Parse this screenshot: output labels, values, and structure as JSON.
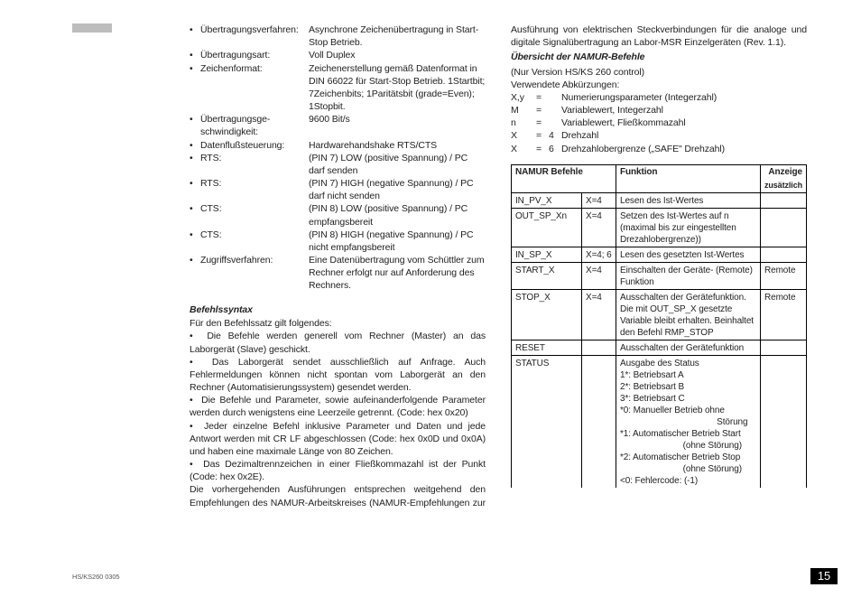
{
  "left": {
    "rows": [
      {
        "term": "Übertragungsverfahren:",
        "def": "Asynchrone Zeichenübertragung in Start-Stop Betrieb."
      },
      {
        "term": "Übertragungsart:",
        "def": "Voll Duplex"
      },
      {
        "term": "Zeichenformat:",
        "def": "Zeichenerstellung gemäß Datenformat in DIN 66022 für Start-Stop Betrieb. 1Startbit; 7Zeichen­bits; 1Paritätsbit (grade=Even); 1Stopbit."
      },
      {
        "term": "Übertragungsge­schwindigkeit:",
        "def": "9600 Bit/s"
      },
      {
        "term": "Datenflußsteuerung:",
        "def": "Hardwarehandshake RTS/CTS"
      },
      {
        "term": "RTS:",
        "def": "(PIN 7) LOW (positive Spannung) / PC darf senden"
      },
      {
        "term": "RTS:",
        "def": "(PIN 7) HIGH (negative Spannung) / PC darf nicht senden"
      },
      {
        "term": "CTS:",
        "def": "(PIN 8) LOW (positive Spannung) / PC empfangsbereit"
      },
      {
        "term": "CTS:",
        "def": "(PIN 8) HIGH (negative Spannung) / PC nicht empfangsbereit"
      },
      {
        "term": "Zugriffsverfahren:",
        "def": "Eine Datenübertragung vom Schüttler zum Rechner erfolgt nur auf Anforderung des Rechners."
      }
    ],
    "syntax_title": "Befehlssyntax",
    "syntax_intro": "Für den Befehlssatz gilt folgendes:",
    "syntax_items": [
      "Die Befehle werden generell vom Rechner (Master) an das Laborgerät (Slave) geschickt.",
      "Das Laborgerät sendet ausschließlich auf Anfrage. Auch Fehlermeldun­gen können nicht spontan vom Laborgerät an den Rechner (Automatisie­rungssystem) gesendet werden.",
      "Die Befehle und Parameter, sowie aufeinanderfolgende Parameter wer­den durch wenigstens eine Leerzeile getrennt. (Code: hex 0x20)",
      "Jeder einzelne Befehl inklusive Parameter und Daten und jede Antwort werden mit CR LF abgeschlossen (Code: hex 0x0D und 0x0A) und haben eine maximale Länge von 80 Zeichen.",
      "Das Dezimaltrennzeichen in einer Fließkommazahl ist der Punkt (Code: hex 0x2E)."
    ],
    "syntax_tail": "Die vorhergehenden Ausführungen entsprechen weitgehend den Empfehlungen des NAMUR-Arbeitskreises (NAMUR-Empfehlungen zur"
  },
  "right": {
    "intro": "Ausführung von elektrischen Steckverbindungen für die analoge und digita­le Signalübertragung an Labor-MSR Einzelgeräten (Rev. 1.1).",
    "ov_title": "Übersicht der NAMUR-Befehle",
    "ov_sub1": "(Nur Version HS/KS 260 control)",
    "ov_sub2": "Verwendete Abkürzungen:",
    "abbr": [
      {
        "k": "X,y",
        "e": "=",
        "v": "",
        "d": "Numerierungsparameter (Integerzahl)"
      },
      {
        "k": "M",
        "e": "=",
        "v": "",
        "d": "Variablewert, Integerzahl"
      },
      {
        "k": "n",
        "e": "=",
        "v": "",
        "d": "Variablewert, Fließkommazahl"
      },
      {
        "k": "X",
        "e": "=",
        "v": "4",
        "d": "Drehzahl"
      },
      {
        "k": "X",
        "e": "=",
        "v": "6",
        "d": "Drehzahlobergrenze („SAFE\" Drehzahl)"
      }
    ],
    "th": {
      "c1": "NAMUR Befehle",
      "c2": "Funktion",
      "c3": "Anzeige",
      "c3b": "zusätzlich"
    },
    "rows": [
      {
        "cmd": "IN_PV_X",
        "x": "X=4",
        "f": "Lesen des Ist-Wertes",
        "a": ""
      },
      {
        "cmd": "OUT_SP_Xn",
        "x": "X=4",
        "f": "Setzen des Ist-Wertes auf n (maximal bis zur eingestellten Drezahlobergrenze))",
        "a": ""
      },
      {
        "cmd": "IN_SP_X",
        "x": "X=4; 6",
        "f": "Lesen des gesetzten Ist-Wertes",
        "a": ""
      },
      {
        "cmd": "START_X",
        "x": "X=4",
        "f": "Einschalten der Geräte- (Remote) Funktion",
        "a": "Remote"
      },
      {
        "cmd": "STOP_X",
        "x": "X=4",
        "f": "Ausschalten der Gerätefunk­tion. Die mit OUT_SP_X ge­setzte Variable bleibt erhalten. Beinhaltet den Befehl RMP_STOP",
        "a": "Remote"
      },
      {
        "cmd": "RESET",
        "x": "",
        "f": "Ausschalten der Gerätefunktion",
        "a": ""
      }
    ],
    "status_cmd": "STATUS",
    "status_f": "Ausgabe des Status",
    "status_lines": [
      "1*: Betriebsart A",
      "2*: Betriebsart B",
      "3*: Betriebsart C",
      "*0: Manueller Betrieb ohne",
      "                                        Störung",
      "*1: Automatischer Betrieb Start",
      "                          (ohne Störung)",
      "*2: Automatischer Betrieb Stop",
      "                          (ohne Störung)",
      "<0: Fehlercode: (-1)"
    ]
  },
  "footer": "HS/KS260 0305",
  "page": "15"
}
